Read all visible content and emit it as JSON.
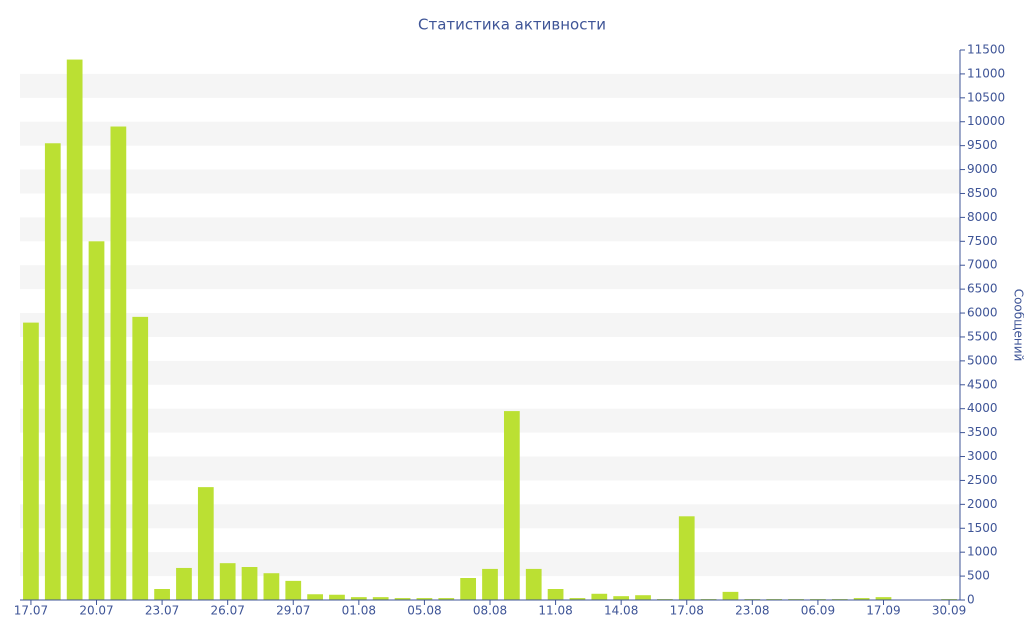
{
  "chart_data": {
    "type": "bar",
    "title": "Статистика активности",
    "y_label": "Сообщений",
    "categories": [
      "17.07",
      null,
      null,
      "20.07",
      null,
      null,
      "23.07",
      null,
      null,
      "26.07",
      null,
      null,
      "29.07",
      null,
      null,
      "01.08",
      null,
      null,
      "05.08",
      null,
      null,
      "08.08",
      null,
      null,
      "11.08",
      null,
      null,
      "14.08",
      null,
      null,
      "17.08",
      null,
      null,
      "23.08",
      null,
      null,
      "06.09",
      null,
      null,
      "17.09",
      null,
      null,
      "30.09"
    ],
    "values": [
      5800,
      9550,
      11300,
      7500,
      9900,
      5920,
      230,
      670,
      2360,
      770,
      690,
      560,
      400,
      120,
      110,
      60,
      60,
      40,
      40,
      40,
      460,
      650,
      3950,
      650,
      230,
      40,
      130,
      80,
      100,
      20,
      1750,
      20,
      170,
      20,
      20,
      20,
      20,
      20,
      40,
      60,
      10,
      10,
      20
    ],
    "color": "#bbe033",
    "ylim": [
      0,
      11500
    ],
    "yticks": [
      0,
      500,
      1000,
      1500,
      2000,
      2500,
      3000,
      3500,
      4000,
      4500,
      5000,
      5500,
      6000,
      6500,
      7000,
      7500,
      8000,
      8500,
      9000,
      9500,
      10000,
      10500,
      11000,
      11500
    ],
    "y_axis_side": "right",
    "grid": "bands"
  }
}
